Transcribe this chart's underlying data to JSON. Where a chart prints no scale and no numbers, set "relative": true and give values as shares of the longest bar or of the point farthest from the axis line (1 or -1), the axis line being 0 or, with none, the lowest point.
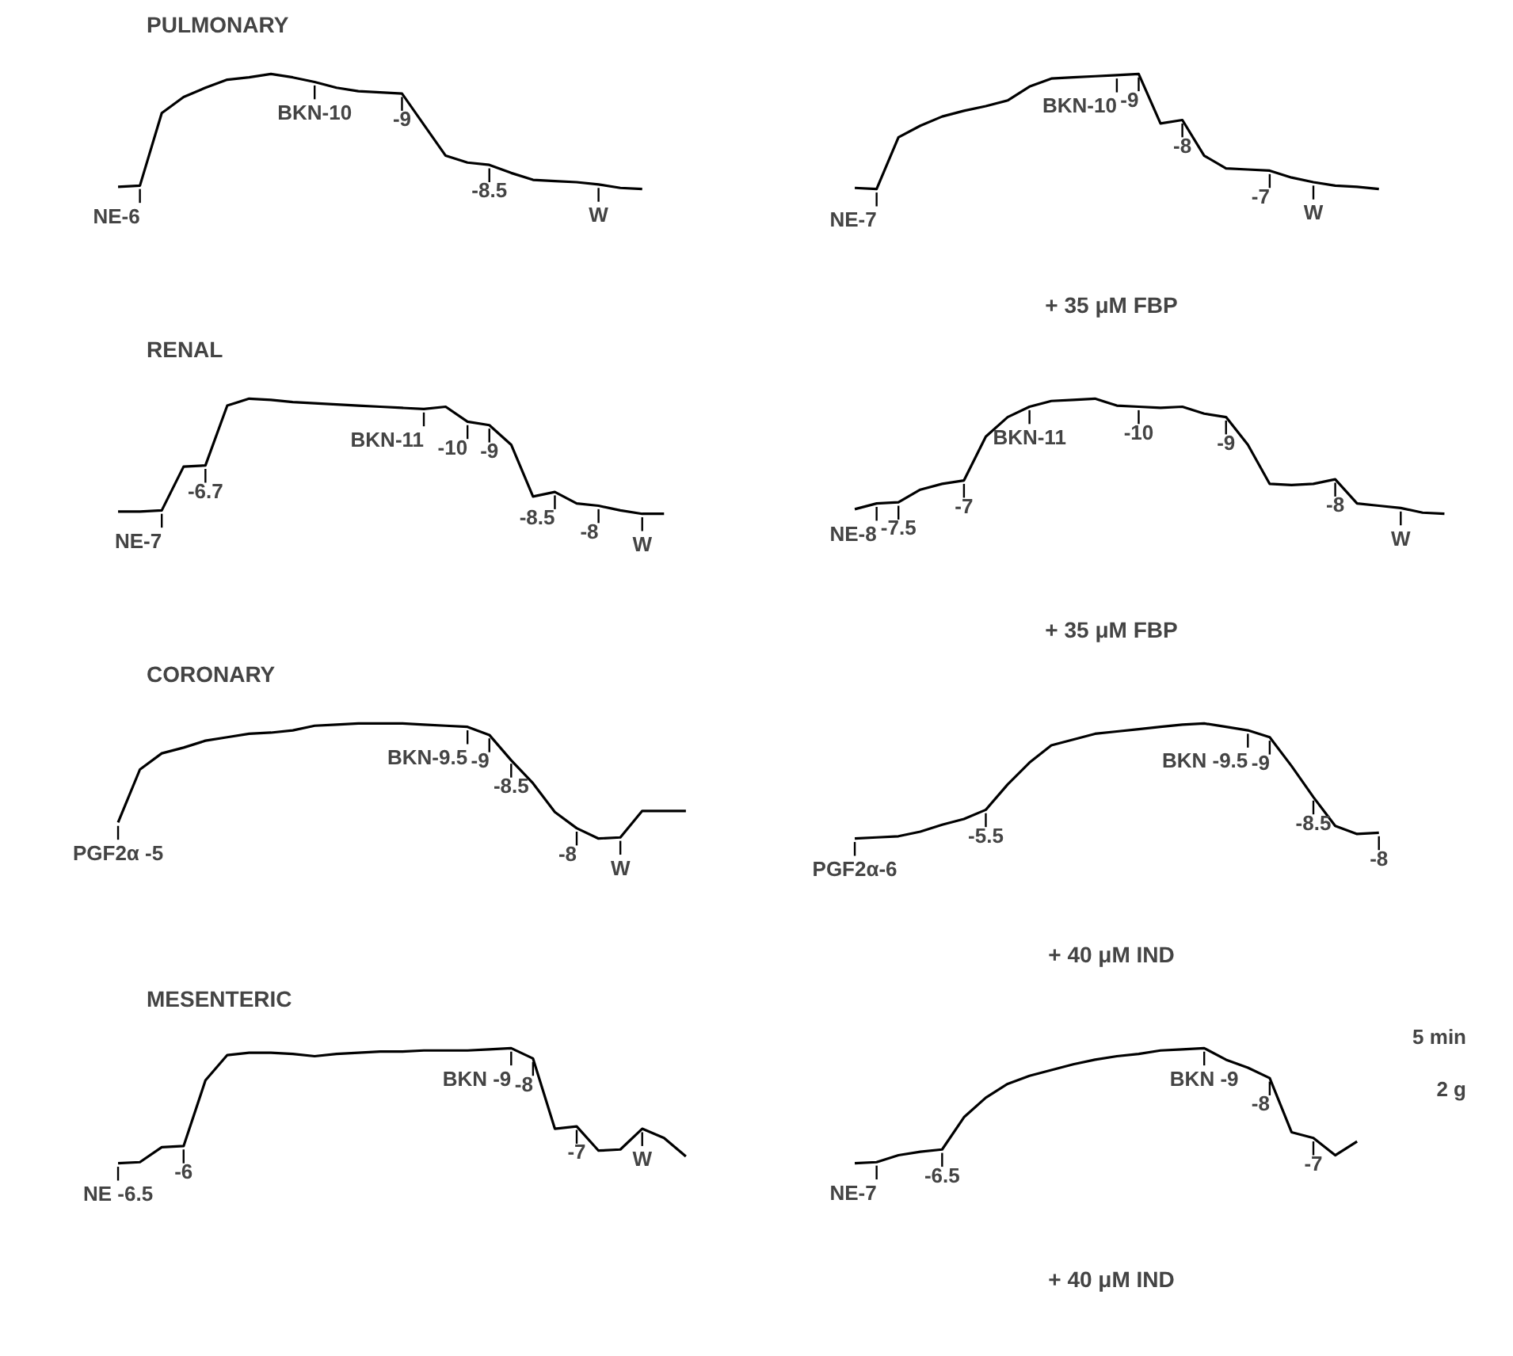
{
  "chart_data": [
    {
      "type": "line",
      "title": "PULMONARY",
      "relative": true,
      "tick_labels": false,
      "grid": false,
      "categories": [
        null,
        null,
        null,
        null,
        null,
        null,
        null,
        null,
        null,
        null,
        null,
        null,
        null,
        null,
        null,
        null,
        null,
        null,
        null,
        null,
        null,
        null,
        null,
        null,
        null
      ],
      "series": [
        {
          "color": "#000000",
          "values": [
            0.02,
            0.03,
            0.66,
            0.8,
            0.88,
            0.95,
            0.97,
            1.0,
            0.97,
            0.93,
            0.88,
            0.85,
            0.84,
            0.83,
            0.56,
            0.29,
            0.23,
            0.21,
            0.14,
            0.08,
            0.07,
            0.06,
            0.04,
            0.01,
            0
          ]
        }
      ],
      "annotations": [
        {
          "text": "NE-6",
          "y": 0.03
        },
        {
          "text": "BKN-10",
          "y": 0.93
        },
        {
          "text": "-9",
          "y": 0.83
        },
        {
          "text": "-8.5",
          "y": 0.21
        },
        {
          "text": "W",
          "y": 0.04
        }
      ]
    },
    {
      "type": "line",
      "subtitle": "+ 35 μM FBP",
      "relative": true,
      "tick_labels": false,
      "grid": false,
      "categories": [
        null,
        null,
        null,
        null,
        null,
        null,
        null,
        null,
        null,
        null,
        null,
        null,
        null,
        null,
        null,
        null,
        null,
        null,
        null,
        null,
        null,
        null,
        null,
        null,
        null
      ],
      "series": [
        {
          "color": "#000000",
          "values": [
            0.01,
            0,
            0.45,
            0.55,
            0.63,
            0.68,
            0.72,
            0.77,
            0.89,
            0.96,
            0.97,
            0.98,
            0.99,
            1.0,
            0.57,
            0.6,
            0.29,
            0.18,
            0.17,
            0.16,
            0.1,
            0.06,
            0.03,
            0.02,
            0
          ]
        }
      ],
      "annotations": [
        {
          "text": "NE-7",
          "y": 0
        },
        {
          "text": "BKN-10",
          "y": 0.99
        },
        {
          "text": "-9",
          "y": 1.0
        },
        {
          "text": "-8",
          "y": 0.6
        },
        {
          "text": "-7",
          "y": 0.16
        },
        {
          "text": "W",
          "y": 0.06
        }
      ]
    },
    {
      "type": "line",
      "title": "RENAL",
      "relative": true,
      "tick_labels": false,
      "grid": false,
      "categories": [
        null,
        null,
        null,
        null,
        null,
        null,
        null,
        null,
        null,
        null,
        null,
        null,
        null,
        null,
        null,
        null,
        null,
        null,
        null,
        null,
        null,
        null,
        null,
        null,
        null,
        null
      ],
      "series": [
        {
          "color": "#000000",
          "values": [
            0.02,
            0.02,
            0.03,
            0.41,
            0.42,
            0.94,
            1.0,
            0.99,
            0.97,
            0.96,
            0.95,
            0.94,
            0.93,
            0.92,
            0.91,
            0.93,
            0.8,
            0.77,
            0.6,
            0.15,
            0.19,
            0.09,
            0.07,
            0.03,
            0,
            0
          ]
        }
      ],
      "annotations": [
        {
          "text": "NE-7",
          "y": 0.03
        },
        {
          "text": "-6.7",
          "y": 0.42
        },
        {
          "text": "BKN-11",
          "y": 0.91
        },
        {
          "text": "-10",
          "y": 0.8
        },
        {
          "text": "-9",
          "y": 0.77
        },
        {
          "text": "-8.5",
          "y": 0.19
        },
        {
          "text": "-8",
          "y": 0.07
        },
        {
          "text": "W",
          "y": 0
        }
      ]
    },
    {
      "type": "line",
      "subtitle": "+ 35 μM FBP",
      "relative": true,
      "tick_labels": false,
      "grid": false,
      "categories": [
        null,
        null,
        null,
        null,
        null,
        null,
        null,
        null,
        null,
        null,
        null,
        null,
        null,
        null,
        null,
        null,
        null,
        null,
        null,
        null,
        null,
        null,
        null,
        null,
        null,
        null,
        null,
        null
      ],
      "series": [
        {
          "color": "#000000",
          "values": [
            0.04,
            0.09,
            0.1,
            0.21,
            0.26,
            0.29,
            0.67,
            0.84,
            0.93,
            0.98,
            0.99,
            1.0,
            0.94,
            0.93,
            0.92,
            0.93,
            0.87,
            0.84,
            0.6,
            0.26,
            0.25,
            0.26,
            0.3,
            0.09,
            0.07,
            0.05,
            0.01,
            0
          ]
        }
      ],
      "annotations": [
        {
          "text": "NE-8",
          "y": 0.09
        },
        {
          "text": "-7.5",
          "y": 0.1
        },
        {
          "text": "-7",
          "y": 0.29
        },
        {
          "text": "BKN-11",
          "y": 0.93
        },
        {
          "text": "-10",
          "y": 0.93
        },
        {
          "text": "-9",
          "y": 0.84
        },
        {
          "text": "-8",
          "y": 0.3
        },
        {
          "text": "W",
          "y": 0.05
        }
      ]
    },
    {
      "type": "line",
      "title": "CORONARY",
      "relative": true,
      "tick_labels": false,
      "grid": false,
      "categories": [
        null,
        null,
        null,
        null,
        null,
        null,
        null,
        null,
        null,
        null,
        null,
        null,
        null,
        null,
        null,
        null,
        null,
        null,
        null,
        null,
        null,
        null,
        null,
        null,
        null,
        null,
        null
      ],
      "series": [
        {
          "color": "#000000",
          "values": [
            0.14,
            0.6,
            0.74,
            0.79,
            0.85,
            0.88,
            0.91,
            0.92,
            0.94,
            0.98,
            0.99,
            1.0,
            1.0,
            1.0,
            0.99,
            0.98,
            0.97,
            0.9,
            0.68,
            0.48,
            0.23,
            0.09,
            0,
            0.01,
            0.24,
            0.24,
            0.24
          ]
        }
      ],
      "annotations": [
        {
          "text": "PGF2α -5",
          "y": 0.14
        },
        {
          "text": "BKN-9.5",
          "y": 0.97
        },
        {
          "text": "-9",
          "y": 0.9
        },
        {
          "text": "-8.5",
          "y": 0.68
        },
        {
          "text": "-8",
          "y": 0.09
        },
        {
          "text": "W",
          "y": 0.01
        }
      ]
    },
    {
      "type": "line",
      "subtitle": "+ 40 μM IND",
      "relative": true,
      "tick_labels": false,
      "grid": false,
      "categories": [
        null,
        null,
        null,
        null,
        null,
        null,
        null,
        null,
        null,
        null,
        null,
        null,
        null,
        null,
        null,
        null,
        null,
        null,
        null,
        null,
        null,
        null,
        null,
        null,
        null
      ],
      "series": [
        {
          "color": "#000000",
          "values": [
            0,
            0.01,
            0.02,
            0.06,
            0.12,
            0.17,
            0.25,
            0.47,
            0.66,
            0.81,
            0.86,
            0.91,
            0.93,
            0.95,
            0.97,
            0.99,
            1.0,
            0.97,
            0.94,
            0.88,
            0.63,
            0.36,
            0.11,
            0.04,
            0.05
          ]
        }
      ],
      "annotations": [
        {
          "text": "PGF2α-6",
          "y": 0
        },
        {
          "text": "-5.5",
          "y": 0.25
        },
        {
          "text": "BKN -9.5",
          "y": 0.94
        },
        {
          "text": "-9",
          "y": 0.88
        },
        {
          "text": "-8.5",
          "y": 0.36
        },
        {
          "text": "-8",
          "y": 0.05
        }
      ]
    },
    {
      "type": "line",
      "title": "MESENTERIC",
      "relative": true,
      "tick_labels": false,
      "grid": false,
      "categories": [
        null,
        null,
        null,
        null,
        null,
        null,
        null,
        null,
        null,
        null,
        null,
        null,
        null,
        null,
        null,
        null,
        null,
        null,
        null,
        null,
        null,
        null,
        null,
        null,
        null,
        null,
        null
      ],
      "series": [
        {
          "color": "#000000",
          "values": [
            0,
            0.01,
            0.14,
            0.15,
            0.72,
            0.94,
            0.96,
            0.96,
            0.95,
            0.93,
            0.95,
            0.96,
            0.97,
            0.97,
            0.98,
            0.98,
            0.98,
            0.99,
            1.0,
            0.91,
            0.3,
            0.32,
            0.11,
            0.12,
            0.3,
            0.22,
            0.06
          ]
        }
      ],
      "annotations": [
        {
          "text": "NE -6.5",
          "y": 0
        },
        {
          "text": "-6",
          "y": 0.15
        },
        {
          "text": "BKN -9",
          "y": 1.0
        },
        {
          "text": "-8",
          "y": 0.91
        },
        {
          "text": "-7",
          "y": 0.32
        },
        {
          "text": "W",
          "y": 0.3
        }
      ]
    },
    {
      "type": "line",
      "subtitle": "+ 40 μM IND",
      "relative": true,
      "tick_labels": false,
      "grid": false,
      "categories": [
        null,
        null,
        null,
        null,
        null,
        null,
        null,
        null,
        null,
        null,
        null,
        null,
        null,
        null,
        null,
        null,
        null,
        null,
        null,
        null,
        null,
        null,
        null,
        null
      ],
      "series": [
        {
          "color": "#000000",
          "values": [
            0,
            0.01,
            0.07,
            0.1,
            0.12,
            0.4,
            0.57,
            0.69,
            0.76,
            0.81,
            0.86,
            0.9,
            0.93,
            0.95,
            0.98,
            0.99,
            1.0,
            0.9,
            0.83,
            0.74,
            0.27,
            0.22,
            0.07,
            0.19
          ]
        }
      ],
      "annotations": [
        {
          "text": "NE-7",
          "y": 0.01
        },
        {
          "text": "-6.5",
          "y": 0.12
        },
        {
          "text": "BKN -9",
          "y": 1.0
        },
        {
          "text": "-8",
          "y": 0.74
        },
        {
          "text": "-7",
          "y": 0.22
        },
        "5 min",
        "2 g"
      ]
    }
  ]
}
